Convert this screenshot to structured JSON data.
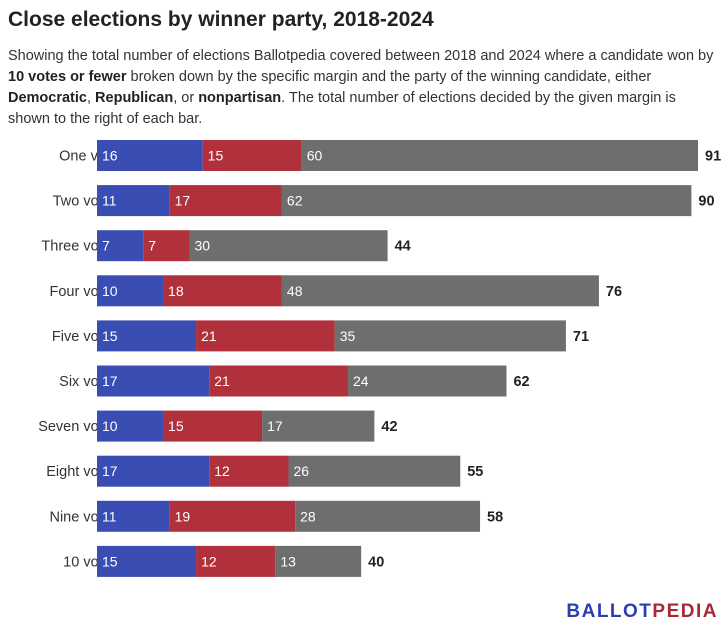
{
  "title": "Close elections by winner party, 2018-2024",
  "subtitle": {
    "part1": "Showing the total number of elections Ballotpedia covered between 2018 and 2024 where a candidate won by ",
    "bold": "10 votes or fewer",
    "part2": " broken down by the specific margin and the party of the winning candidate, either ",
    "dem": "Democratic",
    "sep1": ", ",
    "rep": "Republican",
    "sep2": ", or ",
    "non": "nonpartisan",
    "part3": ". The total number of elections decided by the given margin is shown to the right of each bar."
  },
  "logo": {
    "main": "BALLOT",
    "accent": "PEDIA"
  },
  "colors": {
    "democratic": "#3a4db3",
    "republican": "#b0303c",
    "nonpartisan": "#6e6e6e",
    "segment_text": "#ffffff",
    "total_text": "#222222",
    "category_text": "#333333"
  },
  "chart_data": {
    "type": "bar",
    "orientation": "horizontal",
    "stacked": true,
    "categories": [
      "One vote",
      "Two votes",
      "Three votes",
      "Four votes",
      "Five votes",
      "Six votes",
      "Seven votes",
      "Eight votes",
      "Nine votes",
      "10 votes"
    ],
    "series": [
      {
        "name": "Democratic",
        "values": [
          16,
          11,
          7,
          10,
          15,
          17,
          10,
          17,
          11,
          15
        ]
      },
      {
        "name": "Republican",
        "values": [
          15,
          17,
          7,
          18,
          21,
          21,
          15,
          12,
          19,
          12
        ]
      },
      {
        "name": "nonpartisan",
        "values": [
          60,
          62,
          30,
          48,
          35,
          24,
          17,
          26,
          28,
          13
        ]
      }
    ],
    "totals": [
      91,
      90,
      44,
      76,
      71,
      62,
      42,
      55,
      58,
      40
    ],
    "xlim": [
      0,
      91
    ],
    "grid": false,
    "legend": "none"
  }
}
